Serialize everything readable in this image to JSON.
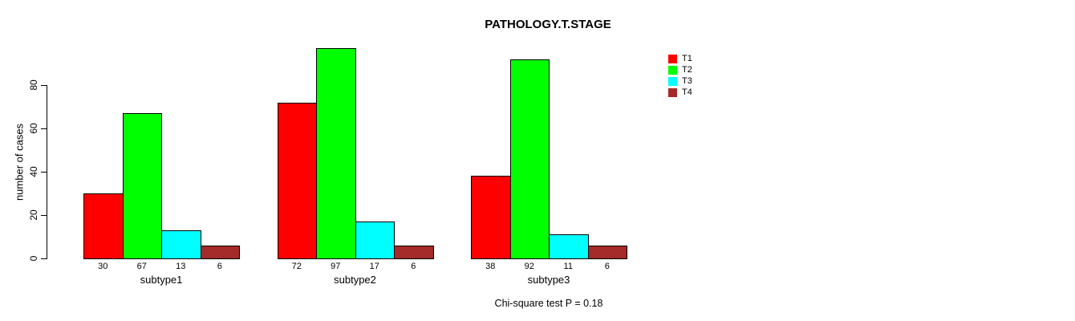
{
  "title": "PATHOLOGY.T.STAGE",
  "annotation": "Chi-square test P = 0.18",
  "chart_data": {
    "type": "bar",
    "title": "PATHOLOGY.T.STAGE",
    "xlabel": "",
    "ylabel": "number of cases",
    "ylim": [
      0,
      80
    ],
    "yticks": [
      0,
      20,
      40,
      60,
      80
    ],
    "grid": false,
    "legend_position": "top-right",
    "bar_value_labels_shown": true,
    "categories": [
      "subtype1",
      "subtype2",
      "subtype3"
    ],
    "series": [
      {
        "name": "T1",
        "color": "#ff0000",
        "values": [
          30,
          72,
          38
        ]
      },
      {
        "name": "T2",
        "color": "#00ff00",
        "values": [
          67,
          97,
          92
        ]
      },
      {
        "name": "T3",
        "color": "#00ffff",
        "values": [
          13,
          17,
          11
        ]
      },
      {
        "name": "T4",
        "color": "#a52a2a",
        "values": [
          6,
          6,
          6
        ]
      }
    ],
    "annotation": "Chi-square test P = 0.18"
  }
}
